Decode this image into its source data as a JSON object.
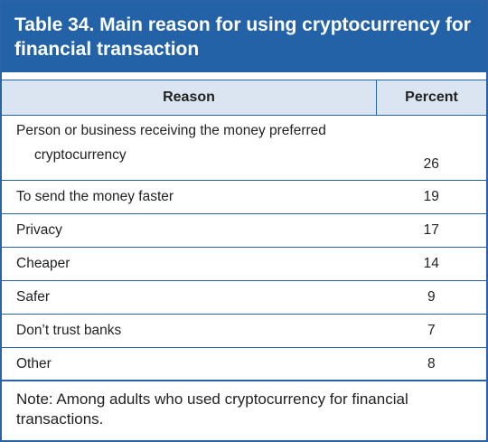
{
  "header": {
    "title": "Table 34. Main reason for using cryptocurrency for financial transaction"
  },
  "table": {
    "columns": [
      "Reason",
      "Percent"
    ],
    "rows": [
      [
        "Person or business receiving the money preferred cryptocurrency",
        26
      ],
      [
        "To send the money faster",
        19
      ],
      [
        "Privacy",
        17
      ],
      [
        "Cheaper",
        14
      ],
      [
        "Safer",
        9
      ],
      [
        "Don’t trust banks",
        7
      ],
      [
        "Other",
        8
      ]
    ]
  },
  "note": "Note: Among adults who used cryptocurrency for financial transactions."
}
